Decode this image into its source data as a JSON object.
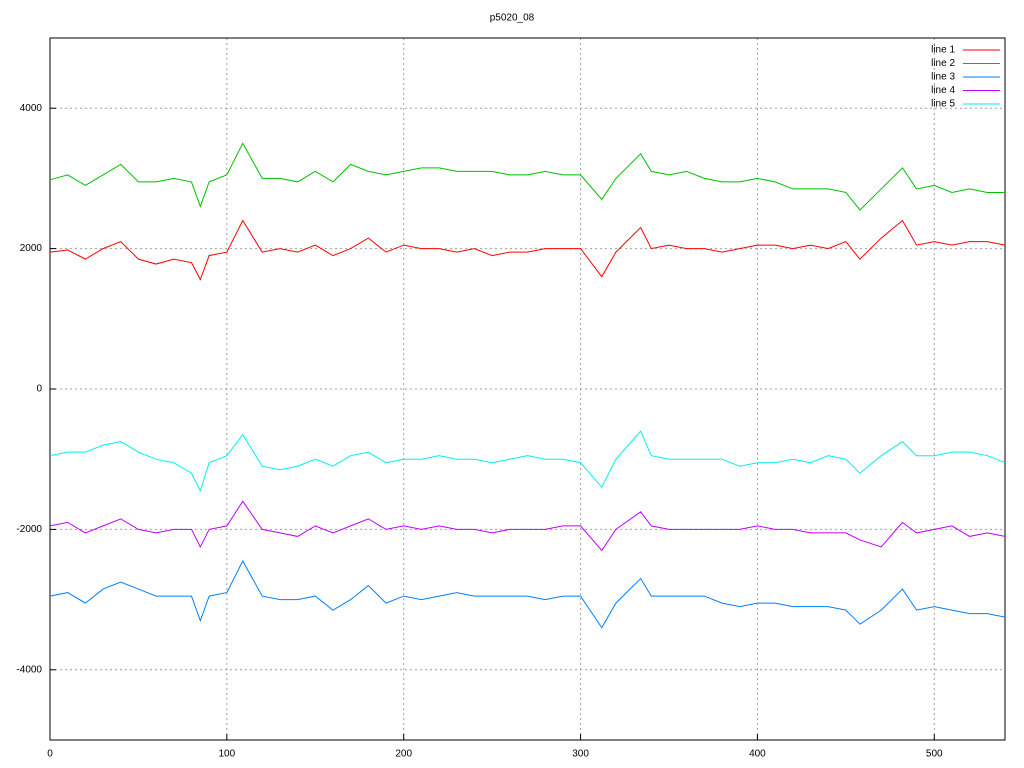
{
  "chart_data": {
    "type": "line",
    "title": "p5020_08",
    "x": [
      0,
      10,
      20,
      30,
      40,
      50,
      60,
      70,
      80,
      85,
      90,
      100,
      109,
      120,
      130,
      140,
      150,
      160,
      170,
      180,
      190,
      200,
      210,
      220,
      230,
      240,
      250,
      260,
      270,
      280,
      290,
      300,
      312,
      320,
      334,
      340,
      350,
      360,
      370,
      380,
      390,
      400,
      410,
      420,
      430,
      440,
      450,
      458,
      470,
      482,
      490,
      500,
      510,
      520,
      530,
      540
    ],
    "series": [
      {
        "name": "line 1",
        "color": "#ff0000",
        "values": [
          1950,
          1980,
          1850,
          2000,
          2100,
          1850,
          1780,
          1850,
          1800,
          1560,
          1900,
          1950,
          2400,
          1950,
          2000,
          1950,
          2050,
          1900,
          2000,
          2150,
          1950,
          2050,
          2000,
          2000,
          1950,
          2000,
          1900,
          1950,
          1950,
          2000,
          2000,
          2000,
          1600,
          1950,
          2300,
          2000,
          2050,
          2000,
          2000,
          1950,
          2000,
          2050,
          2050,
          2000,
          2050,
          2000,
          2100,
          1850,
          2150,
          2400,
          2050,
          2100,
          2050,
          2100,
          2100,
          2050
        ]
      },
      {
        "name": "line 2",
        "color": "#00c000",
        "values": [
          2980,
          3050,
          2900,
          3050,
          3200,
          2950,
          2950,
          3000,
          2950,
          2600,
          2950,
          3050,
          3500,
          3000,
          3000,
          2950,
          3100,
          2950,
          3200,
          3100,
          3050,
          3100,
          3150,
          3150,
          3100,
          3100,
          3100,
          3050,
          3050,
          3100,
          3050,
          3050,
          2700,
          3000,
          3350,
          3100,
          3050,
          3100,
          3000,
          2950,
          2950,
          3000,
          2950,
          2850,
          2850,
          2850,
          2800,
          2550,
          2850,
          3150,
          2850,
          2900,
          2800,
          2850,
          2800,
          2800
        ]
      },
      {
        "name": "line 3",
        "color": "#0080ff",
        "values": [
          -2950,
          -2900,
          -3050,
          -2850,
          -2750,
          -2850,
          -2950,
          -2950,
          -2950,
          -3300,
          -2950,
          -2900,
          -2450,
          -2950,
          -3000,
          -3000,
          -2950,
          -3150,
          -3000,
          -2800,
          -3050,
          -2950,
          -3000,
          -2950,
          -2900,
          -2950,
          -2950,
          -2950,
          -2950,
          -3000,
          -2950,
          -2950,
          -3400,
          -3050,
          -2700,
          -2950,
          -2950,
          -2950,
          -2950,
          -3050,
          -3100,
          -3050,
          -3050,
          -3100,
          -3100,
          -3100,
          -3150,
          -3350,
          -3150,
          -2850,
          -3150,
          -3100,
          -3150,
          -3200,
          -3200,
          -3250
        ]
      },
      {
        "name": "line 4",
        "color": "#c000ff",
        "values": [
          -1950,
          -1900,
          -2050,
          -1950,
          -1850,
          -2000,
          -2050,
          -2000,
          -2000,
          -2250,
          -2000,
          -1950,
          -1600,
          -2000,
          -2050,
          -2100,
          -1950,
          -2050,
          -1950,
          -1850,
          -2000,
          -1950,
          -2000,
          -1950,
          -2000,
          -2000,
          -2050,
          -2000,
          -2000,
          -2000,
          -1950,
          -1950,
          -2300,
          -2000,
          -1750,
          -1950,
          -2000,
          -2000,
          -2000,
          -2000,
          -2000,
          -1950,
          -2000,
          -2000,
          -2050,
          -2050,
          -2050,
          -2150,
          -2250,
          -1900,
          -2050,
          -2000,
          -1950,
          -2100,
          -2050,
          -2100
        ]
      },
      {
        "name": "line 5",
        "color": "#00eeee",
        "values": [
          -950,
          -900,
          -900,
          -800,
          -750,
          -900,
          -1000,
          -1050,
          -1200,
          -1450,
          -1050,
          -950,
          -650,
          -1100,
          -1150,
          -1100,
          -1000,
          -1100,
          -950,
          -900,
          -1050,
          -1000,
          -1000,
          -950,
          -1000,
          -1000,
          -1050,
          -1000,
          -950,
          -1000,
          -1000,
          -1050,
          -1400,
          -1000,
          -600,
          -950,
          -1000,
          -1000,
          -1000,
          -1000,
          -1100,
          -1050,
          -1050,
          -1000,
          -1050,
          -950,
          -1000,
          -1200,
          -950,
          -750,
          -950,
          -950,
          -900,
          -900,
          -950,
          -1050
        ]
      }
    ],
    "xlim": [
      0,
      540
    ],
    "xticks": [
      0,
      100,
      200,
      300,
      400,
      500
    ],
    "ylim": [
      -5000,
      5000
    ],
    "yticks": [
      -4000,
      -2000,
      0,
      2000,
      4000
    ],
    "grid": true,
    "legend": "top-right"
  }
}
